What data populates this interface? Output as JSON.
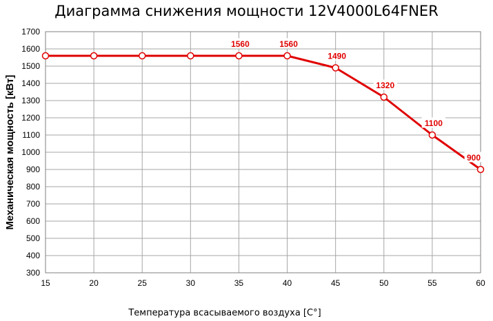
{
  "chart_data": {
    "type": "line",
    "title": "Диаграмма снижения мощности 12V4000L64FNER",
    "xlabel": "Температура всасываемого воздуха [C°]",
    "ylabel": "Механическая мощность [кВт]",
    "xlim": [
      15,
      60
    ],
    "ylim": [
      300,
      1700
    ],
    "x_ticks": [
      15,
      20,
      25,
      30,
      35,
      40,
      45,
      50,
      55,
      60
    ],
    "y_ticks": [
      300,
      400,
      500,
      600,
      700,
      800,
      900,
      1000,
      1100,
      1200,
      1300,
      1400,
      1500,
      1600,
      1700
    ],
    "grid": true,
    "series": [
      {
        "x": [
          15,
          20,
          25,
          30,
          35,
          40,
          45,
          50,
          55,
          60
        ],
        "y": [
          1560,
          1560,
          1560,
          1560,
          1560,
          1560,
          1490,
          1320,
          1100,
          900
        ],
        "color": "#e00000"
      }
    ],
    "data_labels": [
      {
        "x": 35,
        "y": 1560,
        "text": "1560"
      },
      {
        "x": 40,
        "y": 1560,
        "text": "1560"
      },
      {
        "x": 45,
        "y": 1490,
        "text": "1490"
      },
      {
        "x": 50,
        "y": 1320,
        "text": "1320"
      },
      {
        "x": 55,
        "y": 1100,
        "text": "1100"
      },
      {
        "x": 60,
        "y": 900,
        "text": "900"
      }
    ]
  }
}
